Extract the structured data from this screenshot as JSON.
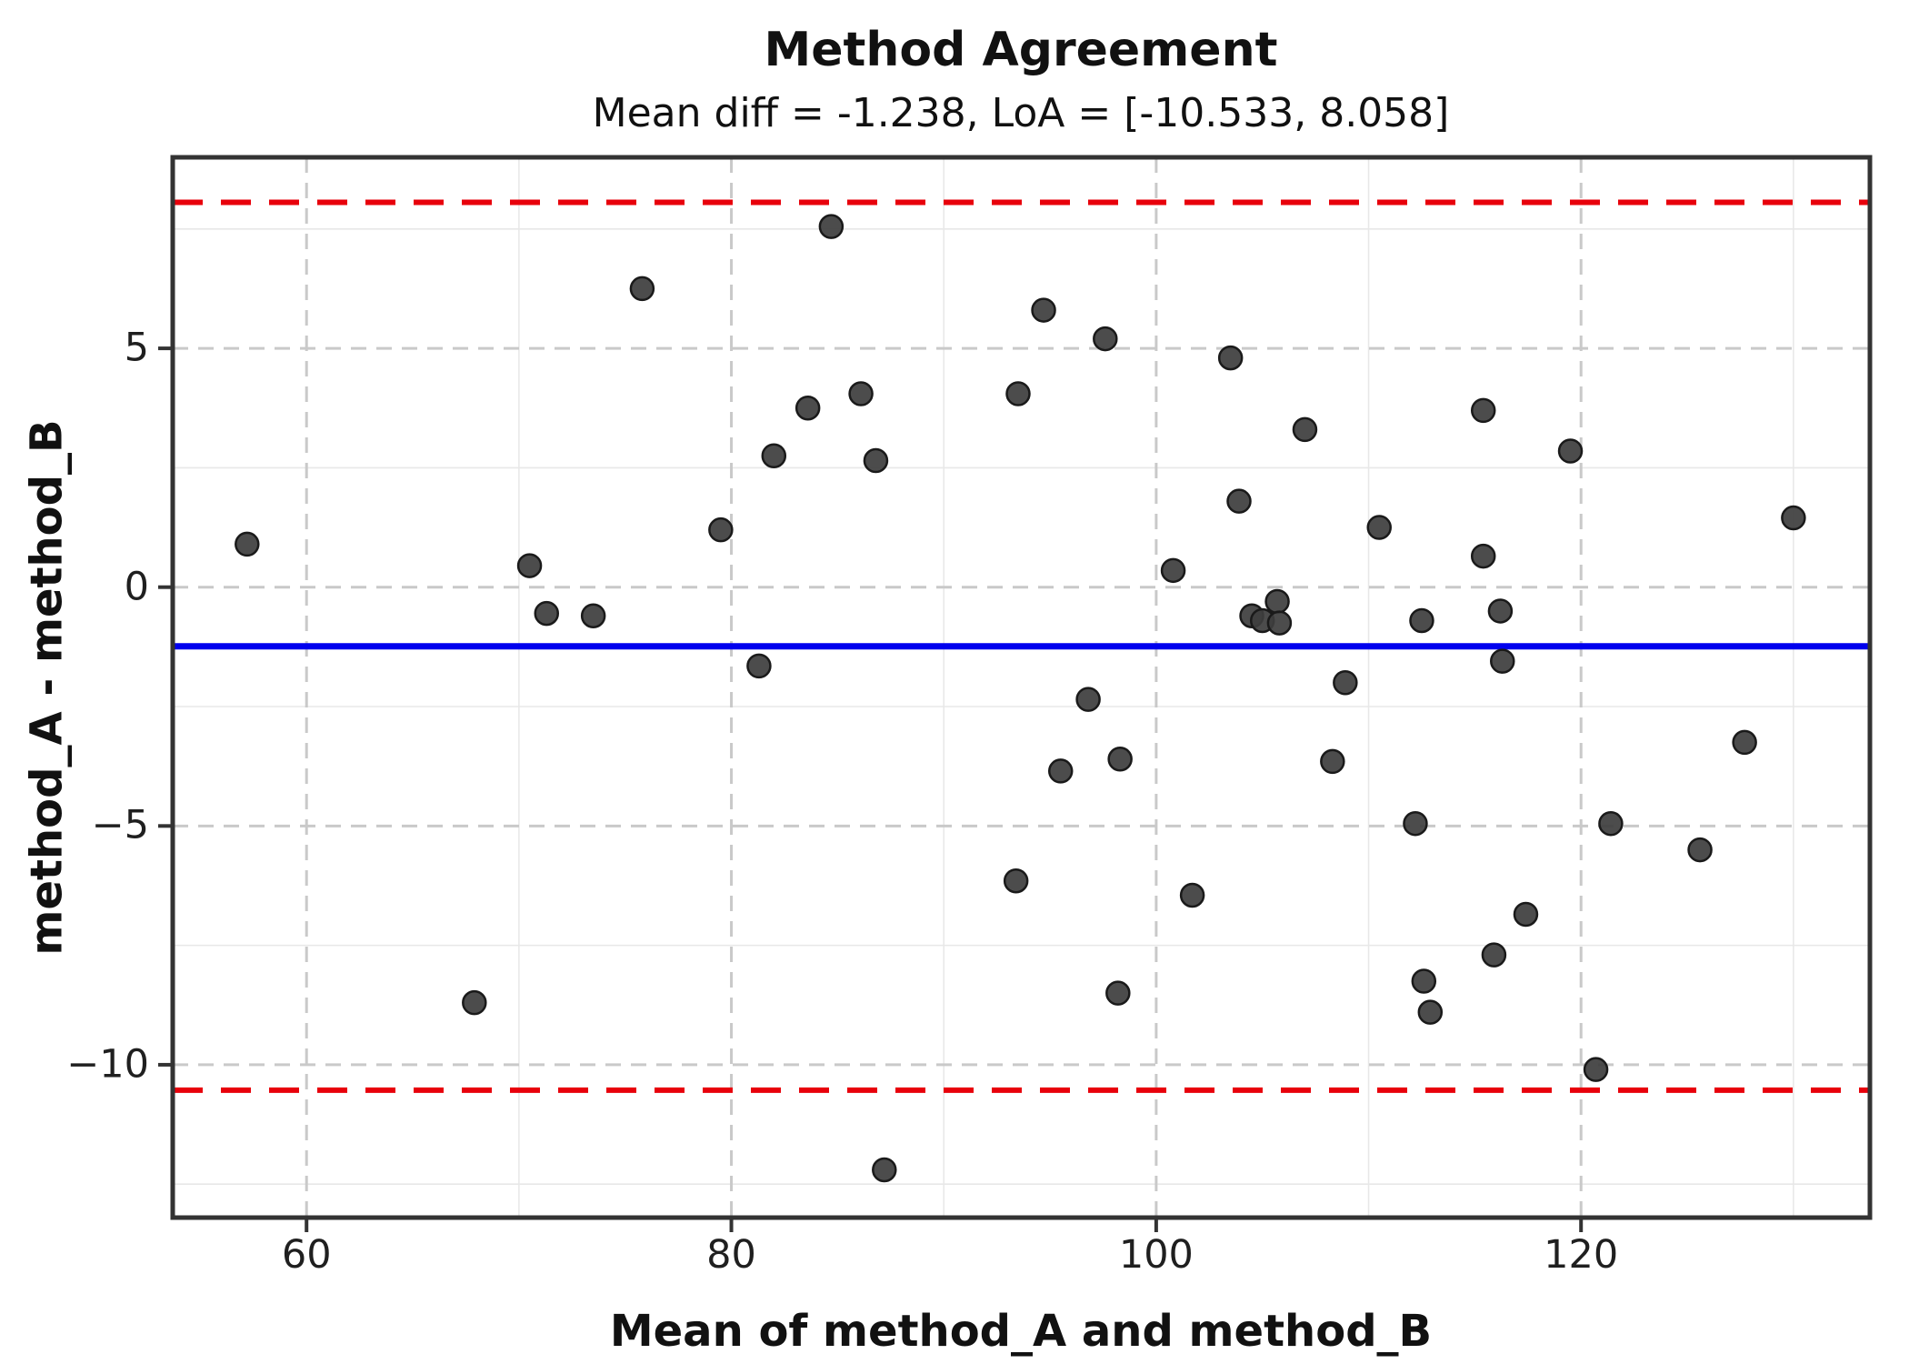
{
  "colors": {
    "background": "#ffffff",
    "point_fill": "#3e3e3e",
    "point_edge": "#1a1a1a",
    "mean_line": "#0000ee",
    "loa_line": "#e8000b",
    "grid_major": "#c9c9c9",
    "grid_minor": "#e8e8e8",
    "frame": "#333333",
    "tick_color": "#333333",
    "text": "#111111"
  },
  "chart_data": {
    "type": "scatter",
    "title": "Method Agreement",
    "subtitle": "Mean diff = -1.238, LoA = [-10.533, 8.058]",
    "xlabel": "Mean of method_A and method_B",
    "ylabel": "method_A - method_B",
    "xlim": [
      53.7,
      133.6
    ],
    "ylim": [
      -13.2,
      9.0
    ],
    "x_major_ticks": [
      60,
      80,
      100,
      120
    ],
    "x_minor_ticks": [
      70,
      90,
      110,
      130
    ],
    "y_major_ticks": [
      5,
      0,
      -5,
      -10
    ],
    "y_minor_ticks": [
      7.5,
      2.5,
      -2.5,
      -7.5,
      -12.5
    ],
    "grid": true,
    "mean_diff": -1.238,
    "loa_upper": 8.058,
    "loa_lower": -10.533,
    "points": [
      [
        57.2,
        0.9
      ],
      [
        67.9,
        -8.7
      ],
      [
        70.5,
        0.45
      ],
      [
        71.3,
        -0.55
      ],
      [
        73.5,
        -0.6
      ],
      [
        75.8,
        6.25
      ],
      [
        79.5,
        1.2
      ],
      [
        81.3,
        -1.65
      ],
      [
        82.0,
        2.75
      ],
      [
        83.6,
        3.75
      ],
      [
        84.7,
        7.55
      ],
      [
        86.1,
        4.05
      ],
      [
        86.8,
        2.65
      ],
      [
        87.2,
        -12.2
      ],
      [
        93.4,
        -6.15
      ],
      [
        93.5,
        4.05
      ],
      [
        94.7,
        5.8
      ],
      [
        95.5,
        -3.85
      ],
      [
        96.8,
        -2.35
      ],
      [
        97.6,
        5.2
      ],
      [
        98.2,
        -8.5
      ],
      [
        98.3,
        -3.6
      ],
      [
        100.8,
        0.35
      ],
      [
        101.7,
        -6.45
      ],
      [
        103.5,
        4.8
      ],
      [
        103.9,
        1.8
      ],
      [
        104.5,
        -0.6
      ],
      [
        105.0,
        -0.7
      ],
      [
        105.7,
        -0.3
      ],
      [
        105.8,
        -0.75
      ],
      [
        107.0,
        3.3
      ],
      [
        108.3,
        -3.65
      ],
      [
        108.9,
        -2.0
      ],
      [
        110.5,
        1.25
      ],
      [
        112.2,
        -4.95
      ],
      [
        112.5,
        -0.7
      ],
      [
        112.6,
        -8.25
      ],
      [
        112.9,
        -8.9
      ],
      [
        115.4,
        3.7
      ],
      [
        115.4,
        0.65
      ],
      [
        115.9,
        -7.7
      ],
      [
        116.2,
        -0.5
      ],
      [
        116.3,
        -1.55
      ],
      [
        117.4,
        -6.85
      ],
      [
        119.5,
        2.85
      ],
      [
        120.7,
        -10.1
      ],
      [
        121.4,
        -4.95
      ],
      [
        125.6,
        -5.5
      ],
      [
        127.7,
        -3.25
      ],
      [
        130.0,
        1.45
      ]
    ]
  }
}
